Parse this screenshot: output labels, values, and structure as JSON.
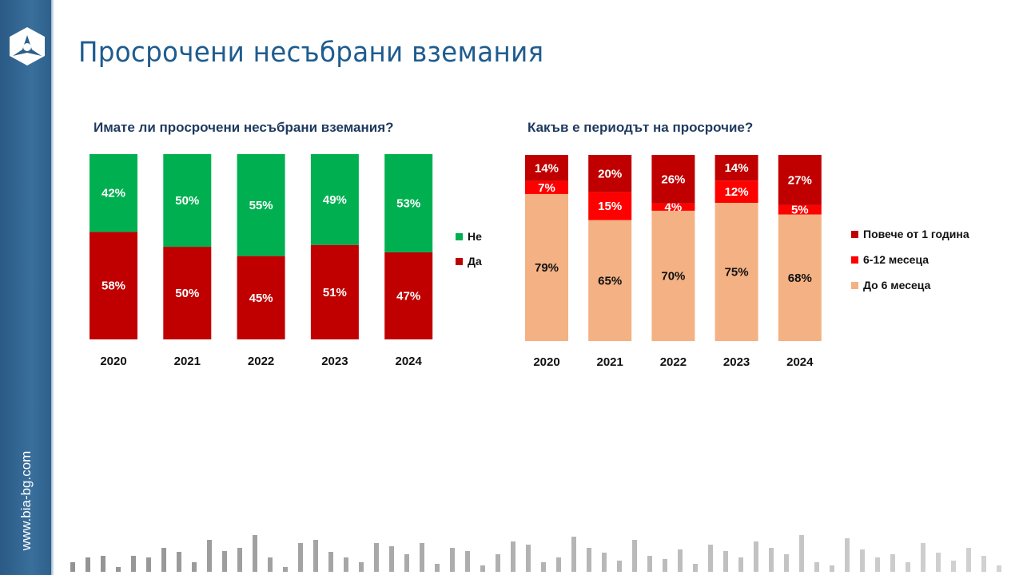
{
  "sidebar": {
    "url": "www.bia-bg.com",
    "color": "#2e5f8a"
  },
  "title": "Просрочени несъбрани вземания",
  "chart_data": [
    {
      "type": "bar",
      "stacked": true,
      "title": "Имате ли просрочени несъбрани вземания?",
      "categories": [
        "2020",
        "2021",
        "2022",
        "2023",
        "2024"
      ],
      "series": [
        {
          "name": "Да",
          "values": [
            58,
            50,
            45,
            51,
            47
          ],
          "color": "#c00000"
        },
        {
          "name": "Не",
          "values": [
            42,
            50,
            55,
            49,
            53
          ],
          "color": "#00b050"
        }
      ],
      "unit": "%",
      "legend": "right",
      "ylim": [
        0,
        100
      ],
      "grid": false
    },
    {
      "type": "bar",
      "stacked": true,
      "title": "Какъв е периодът на просрочие?",
      "categories": [
        "2020",
        "2021",
        "2022",
        "2023",
        "2024"
      ],
      "series": [
        {
          "name": "До 6 месеца",
          "values": [
            79,
            65,
            70,
            75,
            68
          ],
          "color": "#f4b183",
          "label_color": "#111111"
        },
        {
          "name": "6-12 месеца",
          "values": [
            7,
            15,
            4,
            12,
            5
          ],
          "color": "#ff0000",
          "label_color": "#ffffff"
        },
        {
          "name": "Повече от 1 година",
          "values": [
            14,
            20,
            26,
            14,
            27
          ],
          "color": "#c00000",
          "label_color": "#ffffff"
        }
      ],
      "unit": "%",
      "legend": "right",
      "ylim": [
        0,
        100
      ],
      "grid": false
    }
  ]
}
